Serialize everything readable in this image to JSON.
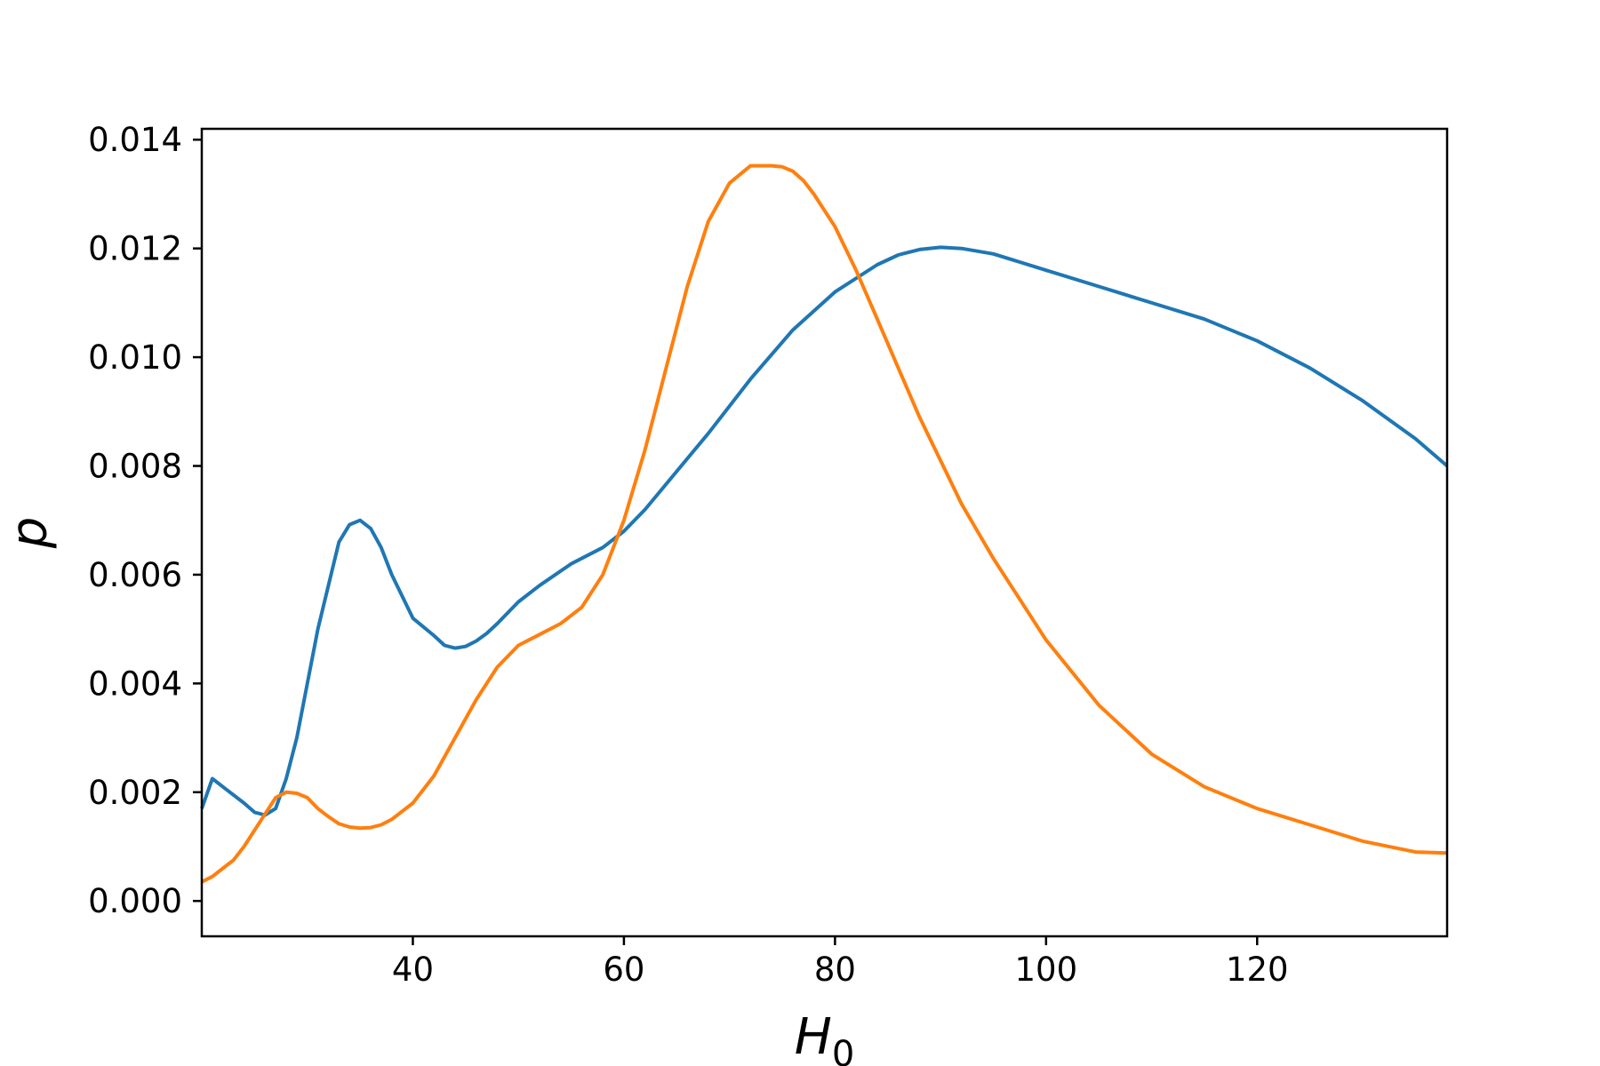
{
  "chart_data": {
    "type": "line",
    "title": "",
    "xlabel": "H",
    "xlabel_subscript": "0",
    "ylabel": "p",
    "xlim": [
      20,
      138
    ],
    "ylim": [
      -0.00065,
      0.0142
    ],
    "xticks": [
      40,
      60,
      80,
      100,
      120
    ],
    "xtick_labels": [
      "40",
      "60",
      "80",
      "100",
      "120"
    ],
    "yticks": [
      0.0,
      0.002,
      0.004,
      0.006,
      0.008,
      0.01,
      0.012,
      0.014
    ],
    "ytick_labels": [
      "0.000",
      "0.002",
      "0.004",
      "0.006",
      "0.008",
      "0.010",
      "0.012",
      "0.014"
    ],
    "grid": false,
    "series": [
      {
        "color": "#1f77b4",
        "x": [
          20,
          21,
          22,
          24,
          25,
          26,
          27,
          28,
          29,
          31,
          33,
          34,
          35,
          36,
          37,
          38,
          40,
          42,
          43,
          44,
          45,
          46,
          47,
          48,
          50,
          52,
          55,
          58,
          60,
          62,
          65,
          68,
          72,
          76,
          80,
          84,
          86,
          88,
          90,
          92,
          95,
          100,
          105,
          110,
          115,
          120,
          125,
          130,
          135,
          138
        ],
        "y": [
          0.0017,
          0.00225,
          0.0021,
          0.0018,
          0.00163,
          0.00158,
          0.0017,
          0.00225,
          0.003,
          0.005,
          0.0066,
          0.00692,
          0.007,
          0.00685,
          0.0065,
          0.006,
          0.0052,
          0.00488,
          0.0047,
          0.00465,
          0.00468,
          0.00478,
          0.00492,
          0.0051,
          0.0055,
          0.0058,
          0.0062,
          0.0065,
          0.0068,
          0.0072,
          0.0079,
          0.0086,
          0.0096,
          0.0105,
          0.0112,
          0.0117,
          0.01188,
          0.01198,
          0.01202,
          0.012,
          0.0119,
          0.0116,
          0.0113,
          0.011,
          0.0107,
          0.0103,
          0.0098,
          0.0092,
          0.0085,
          0.008
        ]
      },
      {
        "color": "#ff7f0e",
        "x": [
          20,
          21,
          22,
          23,
          24,
          25,
          26,
          27,
          28,
          29,
          30,
          31,
          32,
          33,
          34,
          35,
          36,
          37,
          38,
          40,
          42,
          44,
          46,
          48,
          50,
          52,
          54,
          56,
          58,
          60,
          62,
          64,
          66,
          68,
          70,
          72,
          74,
          75,
          76,
          77,
          78,
          80,
          82,
          84,
          86,
          88,
          90,
          92,
          95,
          100,
          105,
          110,
          115,
          120,
          125,
          130,
          135,
          138
        ],
        "y": [
          0.00035,
          0.00045,
          0.0006,
          0.00075,
          0.001,
          0.0013,
          0.0016,
          0.0019,
          0.002,
          0.00198,
          0.0019,
          0.0017,
          0.00155,
          0.00142,
          0.00136,
          0.00134,
          0.00135,
          0.0014,
          0.0015,
          0.0018,
          0.0023,
          0.003,
          0.0037,
          0.0043,
          0.0047,
          0.0049,
          0.0051,
          0.0054,
          0.006,
          0.007,
          0.0083,
          0.0098,
          0.0113,
          0.0125,
          0.0132,
          0.01352,
          0.01352,
          0.0135,
          0.01342,
          0.01325,
          0.013,
          0.0124,
          0.0116,
          0.0107,
          0.0098,
          0.0089,
          0.0081,
          0.0073,
          0.0063,
          0.0048,
          0.0036,
          0.0027,
          0.0021,
          0.0017,
          0.0014,
          0.0011,
          0.0009,
          0.00088
        ]
      }
    ]
  }
}
